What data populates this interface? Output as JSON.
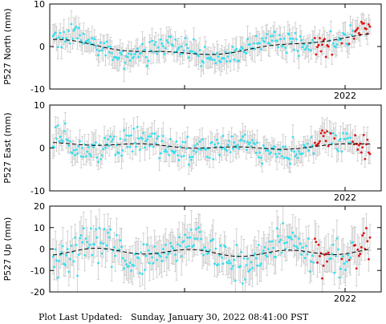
{
  "footer_text": "Plot Last Updated:   Sunday, January 30, 2022 08:41:00 PST",
  "colors": {
    "archived": "#33e0f0",
    "recent": "#e01010",
    "errorbar": "#c8c8c8",
    "model": "#000000"
  },
  "chart_data": [
    {
      "type": "scatter",
      "ylabel": "P527 North (mm)",
      "ylim": [
        -10,
        10
      ],
      "yticks": [
        -10,
        0,
        10
      ],
      "xtick_labels": [
        "2022"
      ],
      "grid": false,
      "station": "P527",
      "component": "North"
    },
    {
      "type": "scatter",
      "ylabel": "P527 East (mm)",
      "ylim": [
        -10,
        10
      ],
      "yticks": [
        -10,
        0,
        10
      ],
      "xtick_labels": [
        "2022"
      ],
      "grid": false,
      "station": "P527",
      "component": "East"
    },
    {
      "type": "scatter",
      "ylabel": "P527 Up (mm)",
      "ylim": [
        -20,
        20
      ],
      "yticks": [
        -20,
        -10,
        0,
        10,
        20
      ],
      "xtick_labels": [
        "2022"
      ],
      "grid": false,
      "station": "P527",
      "component": "Up"
    }
  ]
}
